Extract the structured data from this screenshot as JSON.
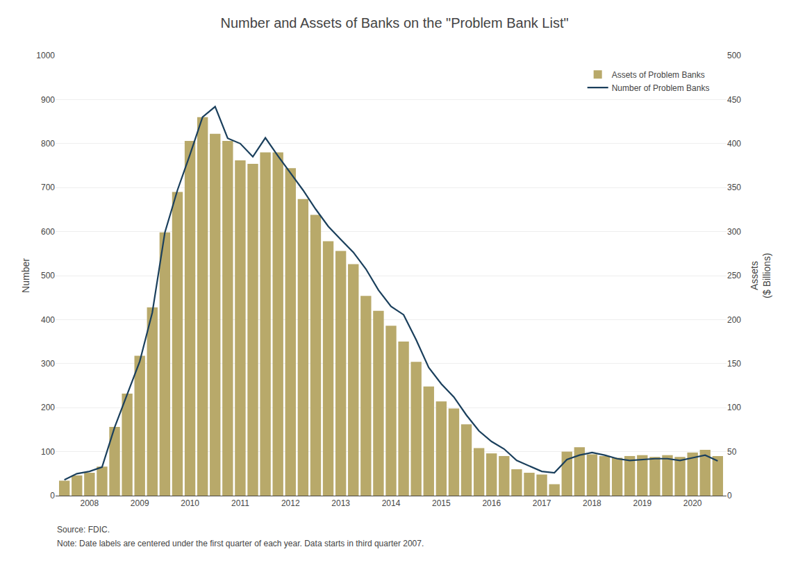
{
  "chart_data": {
    "type": "bar",
    "title": "Number and Assets of Banks on the \"Problem Bank List\"",
    "ylabel": "Number",
    "y2label": "Assets\n($ Billions)",
    "annotations": [
      "Source: FDIC.",
      "Note: Date labels are centered under the first quarter of each year. Data starts in third quarter 2007."
    ],
    "categories": [
      null,
      null,
      "2008",
      null,
      null,
      null,
      "2009",
      null,
      null,
      null,
      "2010",
      null,
      null,
      null,
      "2011",
      null,
      null,
      null,
      "2012",
      null,
      null,
      null,
      "2013",
      null,
      null,
      null,
      "2014",
      null,
      null,
      null,
      "2015",
      null,
      null,
      null,
      "2016",
      null,
      null,
      null,
      "2017",
      null,
      null,
      null,
      "2018",
      null,
      null,
      null,
      "2019",
      null,
      null,
      null,
      "2020",
      null,
      null
    ],
    "series": [
      {
        "name": "Assets of Problem Banks",
        "type": "bar",
        "color": "#b8a96a",
        "axis": "y2",
        "values": [
          17,
          23,
          26,
          33,
          78,
          116,
          159,
          214,
          299,
          345,
          403,
          430,
          411,
          403,
          381,
          377,
          390,
          390,
          372,
          337,
          319,
          289,
          278,
          263,
          227,
          210,
          193,
          175,
          152,
          124,
          107,
          99,
          81,
          54,
          48,
          45,
          30,
          26,
          24,
          13,
          50,
          55,
          47,
          45,
          43,
          45,
          46,
          44,
          46,
          44,
          49,
          52,
          45
        ]
      },
      {
        "name": "Number of Problem Banks",
        "type": "line",
        "color": "#1a3f5c",
        "values": [
          36,
          50,
          55,
          65,
          155,
          230,
          305,
          416,
          598,
          694,
          775,
          860,
          884,
          812,
          800,
          770,
          813,
          772,
          732,
          694,
          651,
          612,
          582,
          553,
          515,
          467,
          430,
          411,
          354,
          291,
          254,
          224,
          183,
          147,
          123,
          106,
          80,
          68,
          55,
          52,
          82,
          92,
          98,
          92,
          84,
          80,
          82,
          84,
          84,
          80,
          86,
          92,
          79
        ]
      }
    ],
    "ylim": [
      0,
      1000
    ],
    "yticks": [
      0,
      100,
      200,
      300,
      400,
      500,
      600,
      700,
      800,
      900,
      1000
    ],
    "y2lim": [
      0,
      500
    ],
    "y2ticks": [
      0,
      50,
      100,
      150,
      200,
      250,
      300,
      350,
      400,
      450,
      500
    ],
    "grid": true,
    "legend": "upper right"
  }
}
